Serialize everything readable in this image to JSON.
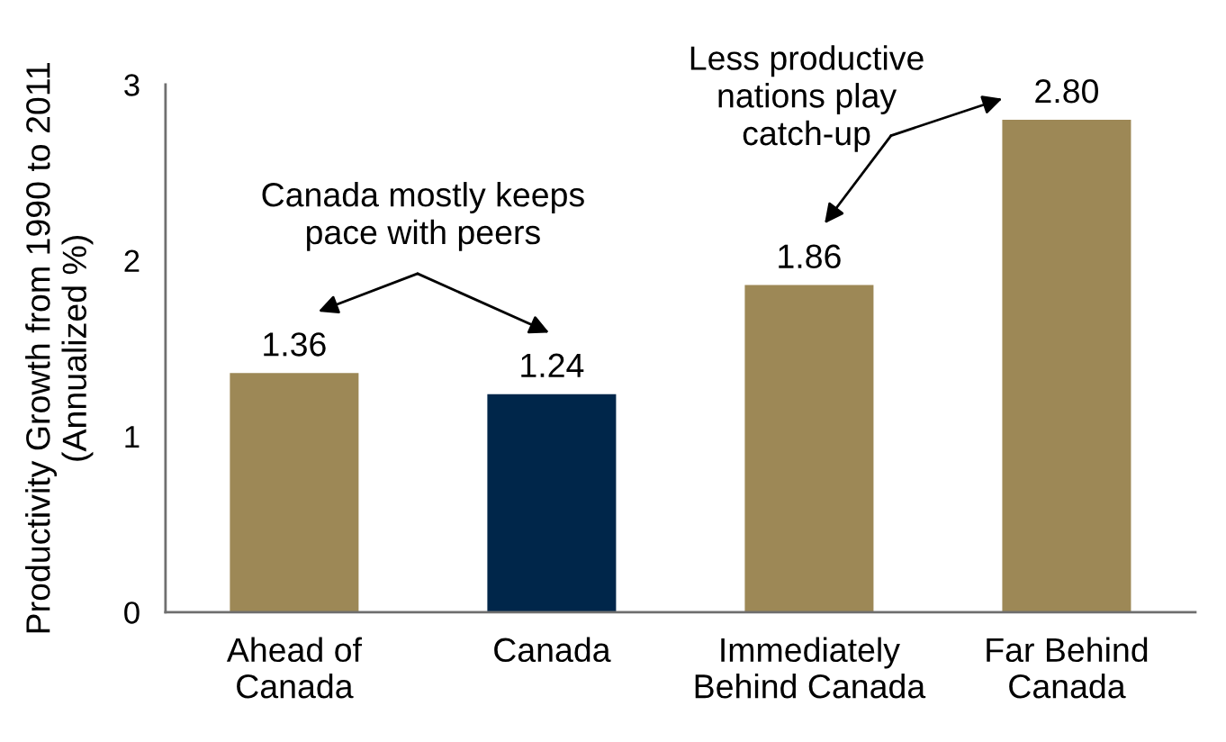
{
  "chart_data": {
    "type": "bar",
    "ylabel": "Productivity Growth from 1990 to 2011\n(Annualized %)",
    "categories": [
      "Ahead of\nCanada",
      "Canada",
      "Immediately\nBehind Canada",
      "Far Behind\nCanada"
    ],
    "values": [
      1.36,
      1.24,
      1.86,
      2.8
    ],
    "value_labels": [
      "1.36",
      "1.24",
      "1.86",
      "2.80"
    ],
    "colors": [
      "#9d8856",
      "#00264a",
      "#9d8856",
      "#9d8856"
    ],
    "ylim": [
      0,
      3
    ],
    "yticks": [
      0,
      1,
      2,
      3
    ],
    "grid": false,
    "annotations": [
      "Canada mostly keeps\npace with peers",
      "Less productive\nnations play\ncatch-up"
    ]
  }
}
